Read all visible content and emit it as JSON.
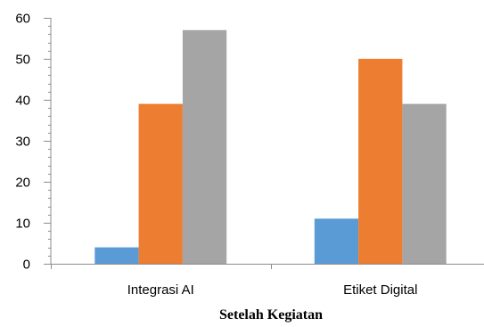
{
  "chart_data": {
    "type": "bar",
    "title": "Setelah Kegiatan",
    "xlabel": "",
    "ylabel": "",
    "categories": [
      "Integrasi AI",
      "Etiket Digital"
    ],
    "series": [
      {
        "values": [
          4,
          11
        ],
        "color": "#5B9BD5"
      },
      {
        "values": [
          39,
          50
        ],
        "color": "#ED7D31"
      },
      {
        "values": [
          57,
          39
        ],
        "color": "#A5A5A5"
      }
    ],
    "ylim": [
      0,
      60
    ],
    "yticks": [
      0,
      10,
      20,
      30,
      40,
      50,
      60
    ],
    "y_minor_step": 2,
    "grid": false,
    "legend": "none"
  }
}
